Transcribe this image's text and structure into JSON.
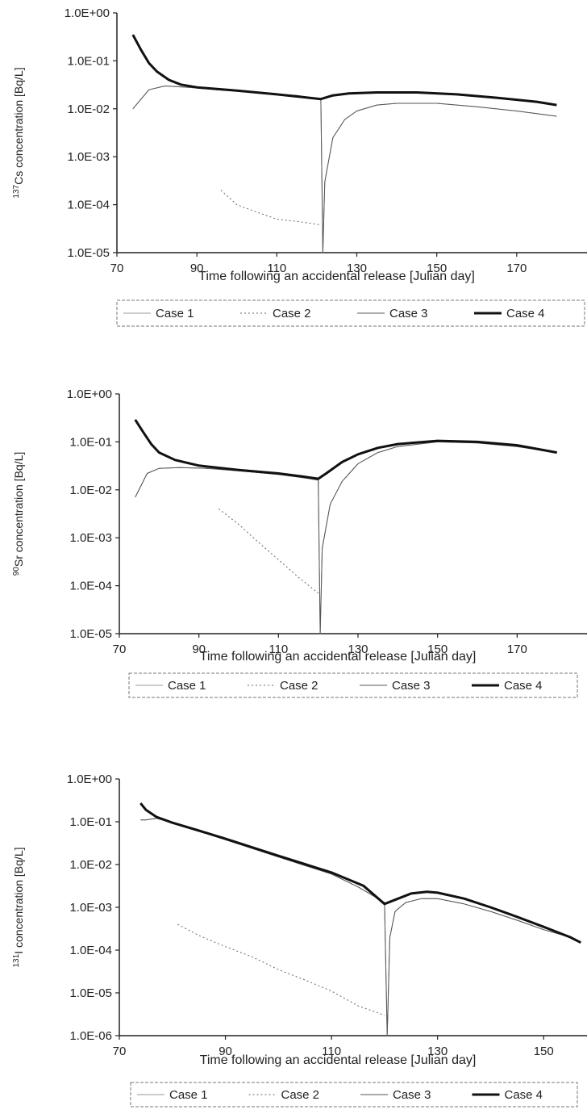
{
  "chart_data": [
    {
      "type": "line",
      "ylabel_sup": "137",
      "ylabel": "Cs concentration [Bq/L]",
      "xlabel": "Time following an accidental release [Julian day]",
      "xlim": [
        70,
        190
      ],
      "xticks": [
        70,
        90,
        110,
        130,
        150,
        170
      ],
      "y_scale": "log",
      "ylim": [
        1e-05,
        1
      ],
      "yticks": [
        "1.0E-05",
        "1.0E-04",
        "1.0E-03",
        "1.0E-02",
        "1.0E-01",
        "1.0E+00"
      ],
      "legend": "bottom",
      "series": [
        {
          "name": "Case 1",
          "x": [
            74,
            78,
            82,
            88,
            95,
            105,
            115,
            121,
            121.5,
            122,
            124,
            127,
            130,
            135,
            140,
            145,
            150,
            160,
            170,
            180
          ],
          "y": [
            0.01,
            0.025,
            0.03,
            0.028,
            0.025,
            0.022,
            0.019,
            0.016,
            1e-05,
            0.0003,
            0.0025,
            0.006,
            0.009,
            0.012,
            0.013,
            0.013,
            0.013,
            0.011,
            0.009,
            0.007
          ]
        },
        {
          "name": "Case 2",
          "x": [
            96,
            100,
            105,
            110,
            115,
            121
          ],
          "y": [
            0.0002,
            0.0001,
            7e-05,
            5e-05,
            4.5e-05,
            3.8e-05
          ]
        },
        {
          "name": "Case 3",
          "x": [
            74,
            78,
            82,
            88,
            95,
            105,
            115,
            121,
            121.5,
            122,
            124,
            127,
            130,
            135,
            140,
            145,
            150,
            160,
            170,
            180
          ],
          "y": [
            0.01,
            0.025,
            0.03,
            0.028,
            0.025,
            0.022,
            0.019,
            0.016,
            1e-05,
            0.0003,
            0.0025,
            0.006,
            0.009,
            0.012,
            0.013,
            0.013,
            0.013,
            0.011,
            0.009,
            0.007
          ]
        },
        {
          "name": "Case 4",
          "x": [
            74,
            76,
            78,
            80,
            83,
            86,
            90,
            100,
            110,
            118,
            121,
            124,
            128,
            135,
            145,
            155,
            165,
            175,
            180
          ],
          "y": [
            0.35,
            0.17,
            0.09,
            0.06,
            0.04,
            0.032,
            0.028,
            0.024,
            0.02,
            0.017,
            0.016,
            0.019,
            0.021,
            0.022,
            0.022,
            0.02,
            0.017,
            0.014,
            0.012
          ]
        }
      ]
    },
    {
      "type": "line",
      "ylabel_sup": "90",
      "ylabel": "Sr concentration [Bq/L]",
      "xlabel": "Time following an accidental release [Julian day]",
      "xlim": [
        70,
        190
      ],
      "xticks": [
        70,
        90,
        110,
        130,
        150,
        170
      ],
      "y_scale": "log",
      "ylim": [
        1e-05,
        1
      ],
      "yticks": [
        "1.0E-05",
        "1.0E-04",
        "1.0E-03",
        "1.0E-02",
        "1.0E-01",
        "1.0E+00"
      ],
      "legend": "bottom",
      "series": [
        {
          "name": "Case 1",
          "x": [
            74,
            77,
            80,
            85,
            92,
            100,
            110,
            116,
            120,
            120.5,
            121,
            123,
            126,
            130,
            135,
            140,
            150,
            160,
            170,
            180
          ],
          "y": [
            0.007,
            0.022,
            0.028,
            0.029,
            0.028,
            0.025,
            0.021,
            0.018,
            0.016,
            1e-05,
            0.0006,
            0.005,
            0.015,
            0.035,
            0.06,
            0.08,
            0.1,
            0.095,
            0.08,
            0.06
          ]
        },
        {
          "name": "Case 2",
          "x": [
            95,
            100,
            105,
            110,
            115,
            120
          ],
          "y": [
            0.004,
            0.0019,
            0.0008,
            0.00035,
            0.00015,
            7e-05
          ]
        },
        {
          "name": "Case 3",
          "x": [
            74,
            77,
            80,
            85,
            92,
            100,
            110,
            116,
            120,
            120.5,
            121,
            123,
            126,
            130,
            135,
            140,
            150,
            160,
            170,
            180
          ],
          "y": [
            0.007,
            0.022,
            0.028,
            0.029,
            0.028,
            0.025,
            0.021,
            0.018,
            0.016,
            1e-05,
            0.0006,
            0.005,
            0.015,
            0.035,
            0.06,
            0.08,
            0.1,
            0.095,
            0.08,
            0.06
          ]
        },
        {
          "name": "Case 4",
          "x": [
            74,
            76,
            78,
            80,
            84,
            90,
            100,
            110,
            116,
            120,
            122,
            126,
            130,
            135,
            140,
            150,
            160,
            170,
            180
          ],
          "y": [
            0.29,
            0.16,
            0.09,
            0.06,
            0.042,
            0.032,
            0.026,
            0.022,
            0.019,
            0.017,
            0.022,
            0.038,
            0.055,
            0.075,
            0.09,
            0.105,
            0.1,
            0.085,
            0.06
          ]
        }
      ]
    },
    {
      "type": "line",
      "ylabel_sup": "131",
      "ylabel": "I concentration [Bq/L]",
      "xlabel": "Time following an accidental release [Julian day]",
      "xlim": [
        70,
        160
      ],
      "xticks": [
        70,
        90,
        110,
        130,
        150
      ],
      "y_scale": "log",
      "ylim": [
        1e-06,
        1
      ],
      "yticks": [
        "1.0E-06",
        "1.0E-05",
        "1.0E-04",
        "1.0E-03",
        "1.0E-02",
        "1.0E-01",
        "1.0E+00"
      ],
      "legend": "bottom",
      "series": [
        {
          "name": "Case 1",
          "x": [
            74,
            75,
            77,
            80,
            85,
            90,
            100,
            110,
            115,
            120,
            120.5,
            121,
            122,
            124,
            127,
            130,
            135,
            140,
            145,
            150,
            155,
            157
          ],
          "y": [
            0.11,
            0.11,
            0.12,
            0.095,
            0.06,
            0.038,
            0.015,
            0.006,
            0.003,
            0.0013,
            1e-06,
            0.0002,
            0.0008,
            0.0013,
            0.0016,
            0.0016,
            0.0012,
            0.0008,
            0.0005,
            0.0003,
            0.0002,
            0.00015
          ]
        },
        {
          "name": "Case 2",
          "x": [
            81,
            85,
            90,
            95,
            100,
            105,
            110,
            115,
            120
          ],
          "y": [
            0.0004,
            0.00022,
            0.00012,
            7e-05,
            3.5e-05,
            2e-05,
            1.1e-05,
            5e-06,
            3e-06
          ]
        },
        {
          "name": "Case 3",
          "x": [
            74,
            75,
            77,
            80,
            85,
            90,
            100,
            110,
            115,
            120,
            120.5,
            121,
            122,
            124,
            127,
            130,
            135,
            140,
            145,
            150,
            155,
            157
          ],
          "y": [
            0.11,
            0.11,
            0.12,
            0.095,
            0.06,
            0.038,
            0.015,
            0.006,
            0.003,
            0.0013,
            1e-06,
            0.0002,
            0.0008,
            0.0013,
            0.0016,
            0.0016,
            0.0012,
            0.0008,
            0.0005,
            0.0003,
            0.0002,
            0.00015
          ]
        },
        {
          "name": "Case 4",
          "x": [
            74,
            75,
            77,
            80,
            85,
            90,
            100,
            110,
            116,
            120,
            122,
            125,
            128,
            130,
            135,
            140,
            145,
            150,
            155,
            157
          ],
          "y": [
            0.27,
            0.19,
            0.13,
            0.095,
            0.062,
            0.04,
            0.016,
            0.0065,
            0.0032,
            0.0012,
            0.0015,
            0.0021,
            0.0023,
            0.0022,
            0.0016,
            0.001,
            0.0006,
            0.00035,
            0.0002,
            0.00015
          ]
        }
      ]
    }
  ]
}
